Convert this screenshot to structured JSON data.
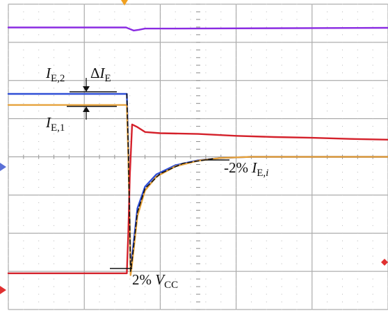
{
  "chart_data": {
    "type": "line",
    "title": "",
    "xlabel": "",
    "ylabel": "",
    "grid": true,
    "grid_divisions": {
      "x": 5,
      "y": 8
    },
    "xlim": [
      0,
      5
    ],
    "ylim": [
      -4,
      4
    ],
    "series": [
      {
        "color": "#8a2be2",
        "points": [
          [
            0.0,
            3.39
          ],
          [
            1.55,
            3.39
          ],
          [
            1.6,
            3.35
          ],
          [
            1.65,
            3.31
          ],
          [
            1.72,
            3.33
          ],
          [
            1.8,
            3.36
          ],
          [
            2.2,
            3.36
          ],
          [
            5.0,
            3.38
          ]
        ]
      },
      {
        "color": "#2f4fd6",
        "points": [
          [
            0.0,
            1.65
          ],
          [
            1.56,
            1.65
          ],
          [
            1.58,
            0.2
          ],
          [
            1.6,
            -1.8
          ],
          [
            1.61,
            -3.0
          ],
          [
            1.63,
            -2.6
          ],
          [
            1.7,
            -1.35
          ],
          [
            1.8,
            -0.78
          ],
          [
            1.95,
            -0.46
          ],
          [
            2.2,
            -0.22
          ],
          [
            2.5,
            -0.09
          ],
          [
            2.8,
            -0.03
          ],
          [
            3.2,
            0.0
          ],
          [
            5.0,
            0.0
          ]
        ]
      },
      {
        "color": "#e6a23c",
        "points": [
          [
            0.0,
            1.36
          ],
          [
            1.56,
            1.36
          ],
          [
            1.58,
            0.05
          ],
          [
            1.6,
            -1.9
          ],
          [
            1.61,
            -3.1
          ],
          [
            1.63,
            -2.8
          ],
          [
            1.7,
            -1.55
          ],
          [
            1.8,
            -0.88
          ],
          [
            1.95,
            -0.52
          ],
          [
            2.2,
            -0.25
          ],
          [
            2.5,
            -0.1
          ],
          [
            2.8,
            -0.03
          ],
          [
            3.2,
            0.0
          ],
          [
            5.0,
            0.0
          ]
        ]
      },
      {
        "color": "#d4202a",
        "points": [
          [
            0.0,
            -3.05
          ],
          [
            1.56,
            -3.05
          ],
          [
            1.58,
            -2.0
          ],
          [
            1.6,
            -0.5
          ],
          [
            1.63,
            0.85
          ],
          [
            1.7,
            0.78
          ],
          [
            1.8,
            0.65
          ],
          [
            2.0,
            0.62
          ],
          [
            2.5,
            0.6
          ],
          [
            3.0,
            0.55
          ],
          [
            3.5,
            0.52
          ],
          [
            4.0,
            0.5
          ],
          [
            4.5,
            0.47
          ],
          [
            5.0,
            0.45
          ]
        ]
      },
      {
        "color": "#111111",
        "dashed": true,
        "points": [
          [
            1.56,
            1.65
          ],
          [
            1.58,
            0.2
          ],
          [
            1.6,
            -1.9
          ],
          [
            1.61,
            -3.0
          ],
          [
            1.63,
            -2.7
          ],
          [
            1.7,
            -1.45
          ],
          [
            1.8,
            -0.83
          ],
          [
            2.0,
            -0.44
          ],
          [
            2.3,
            -0.17
          ],
          [
            2.7,
            -0.05
          ]
        ]
      }
    ],
    "annotations": [
      {
        "id": "ie2",
        "letter": "I",
        "sub": "E,2"
      },
      {
        "id": "die",
        "delta": "Δ",
        "letter": "I",
        "sub": "E"
      },
      {
        "id": "ie1",
        "letter": "I",
        "sub": "E,1"
      },
      {
        "id": "pct_i",
        "prefix": "-2% ",
        "letter": "I",
        "sub_plain": "E,",
        "sub_it": "i"
      },
      {
        "id": "vcc",
        "prefix": "2% ",
        "letter": "V",
        "sub": "CC"
      }
    ],
    "markers": {
      "trigger_color": "#f0a020",
      "left_arrow_colors": [
        "#5a6fd6",
        "#e03030"
      ],
      "right_marker_color": "#e03030"
    }
  }
}
